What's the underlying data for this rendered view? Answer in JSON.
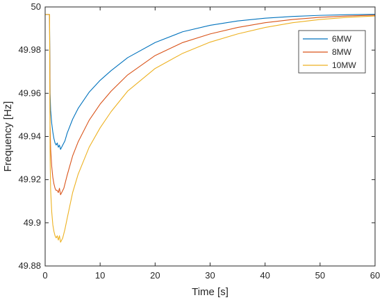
{
  "chart_data": {
    "type": "line",
    "title": "",
    "xlabel": "Time [s]",
    "ylabel": "Frequency [Hz]",
    "xlim": [
      0,
      60
    ],
    "ylim": [
      49.88,
      50
    ],
    "xticks": [
      "0",
      "10",
      "20",
      "30",
      "40",
      "50",
      "60"
    ],
    "yticks": [
      "49.88",
      "49.9",
      "49.92",
      "49.94",
      "49.96",
      "49.98",
      "50"
    ],
    "grid": false,
    "legend_position": "top-right",
    "series": [
      {
        "name": "6MW",
        "color": "#0072BD",
        "x": [
          0,
          0.8,
          0.9,
          1.0,
          1.2,
          1.4,
          1.6,
          1.8,
          2.0,
          2.2,
          2.4,
          2.6,
          2.8,
          3.0,
          3.2,
          3.4,
          3.6,
          4,
          5,
          6,
          8,
          10,
          12,
          15,
          20,
          25,
          30,
          35,
          40,
          45,
          50,
          55,
          60
        ],
        "y": [
          49.9965,
          49.9965,
          49.96,
          49.952,
          49.946,
          49.942,
          49.939,
          49.937,
          49.936,
          49.937,
          49.935,
          49.936,
          49.934,
          49.935,
          49.936,
          49.937,
          49.938,
          49.9415,
          49.948,
          49.953,
          49.9605,
          49.966,
          49.9705,
          49.9765,
          49.9835,
          49.9885,
          49.9915,
          49.9935,
          49.9948,
          49.9956,
          49.9961,
          49.9964,
          49.9966
        ]
      },
      {
        "name": "8MW",
        "color": "#D95319",
        "x": [
          0,
          0.8,
          0.9,
          1.0,
          1.2,
          1.4,
          1.6,
          1.8,
          2.0,
          2.2,
          2.4,
          2.6,
          2.8,
          3.0,
          3.2,
          3.4,
          3.6,
          4,
          5,
          6,
          8,
          10,
          12,
          15,
          20,
          25,
          30,
          35,
          40,
          45,
          50,
          55,
          60
        ],
        "y": [
          49.9965,
          49.9965,
          49.945,
          49.934,
          49.926,
          49.921,
          49.918,
          49.916,
          49.915,
          49.915,
          49.914,
          49.916,
          49.913,
          49.914,
          49.915,
          49.916,
          49.918,
          49.922,
          49.931,
          49.9375,
          49.9475,
          49.955,
          49.961,
          49.9685,
          49.9775,
          49.9835,
          49.9875,
          49.9905,
          49.9927,
          49.9942,
          49.9952,
          49.9958,
          49.9962
        ]
      },
      {
        "name": "10MW",
        "color": "#EDB120",
        "x": [
          0,
          0.8,
          0.9,
          1.0,
          1.2,
          1.4,
          1.6,
          1.8,
          2.0,
          2.2,
          2.4,
          2.6,
          2.8,
          3.0,
          3.2,
          3.4,
          3.6,
          4,
          5,
          6,
          8,
          10,
          12,
          15,
          20,
          25,
          30,
          35,
          40,
          45,
          50,
          55,
          60
        ],
        "y": [
          49.9965,
          49.9965,
          49.93,
          49.915,
          49.905,
          49.899,
          49.896,
          49.894,
          49.893,
          49.894,
          49.892,
          49.894,
          49.891,
          49.892,
          49.893,
          49.895,
          49.897,
          49.902,
          49.914,
          49.9225,
          49.935,
          49.944,
          49.9515,
          49.961,
          49.9715,
          49.9785,
          49.9837,
          49.9875,
          49.9905,
          49.9927,
          49.9942,
          49.9952,
          49.9958
        ]
      }
    ]
  }
}
